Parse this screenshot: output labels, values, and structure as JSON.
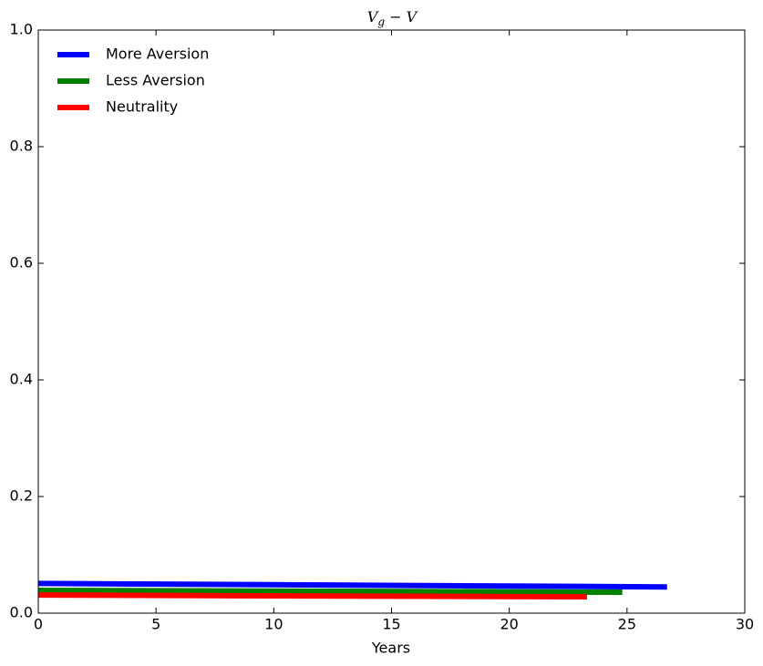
{
  "chart_data": {
    "type": "line",
    "title": [
      "V",
      "g",
      " − V"
    ],
    "xlabel": "Years",
    "series": [
      {
        "name": "More Aversion",
        "color": "#0000ff",
        "x": [
          0,
          26.7
        ],
        "values": [
          0.051,
          0.045
        ]
      },
      {
        "name": "Less Aversion",
        "color": "#008000",
        "x": [
          0,
          24.8
        ],
        "values": [
          0.039,
          0.036
        ]
      },
      {
        "name": "Neutrality",
        "color": "#ff0000",
        "x": [
          0,
          23.3
        ],
        "values": [
          0.031,
          0.028
        ]
      }
    ],
    "xlim": [
      0,
      30
    ],
    "xticks": [
      0,
      5,
      10,
      15,
      20,
      25,
      30
    ],
    "ylim": [
      0,
      1
    ],
    "yticks": [
      {
        "value": 0,
        "label": "0.0"
      },
      0.2,
      0.4,
      0.6,
      0.8,
      {
        "value": 1,
        "label": "1.0"
      }
    ],
    "legend": "upper left",
    "grid": false
  }
}
